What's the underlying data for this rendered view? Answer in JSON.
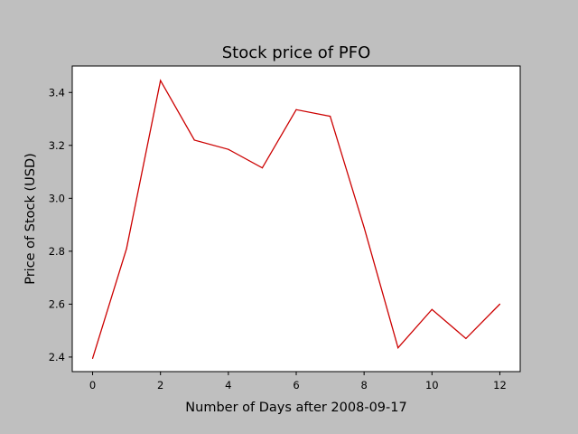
{
  "chart_data": {
    "type": "line",
    "title": "Stock price of PFO",
    "xlabel": "Number of Days after 2008-09-17",
    "ylabel": "Price of Stock (USD)",
    "xlim": [
      -0.6,
      12.6
    ],
    "ylim": [
      2.345,
      3.5
    ],
    "xticks": [
      0,
      2,
      4,
      6,
      8,
      10,
      12
    ],
    "xtick_labels": [
      "0",
      "2",
      "4",
      "6",
      "8",
      "10",
      "12"
    ],
    "yticks": [
      2.4,
      2.6,
      2.8,
      3.0,
      3.2,
      3.4
    ],
    "ytick_labels": [
      "2.4",
      "2.6",
      "2.8",
      "3.0",
      "3.2",
      "3.4"
    ],
    "grid": false,
    "series": [
      {
        "color": "#cc0000",
        "x": [
          0,
          1,
          2,
          3,
          4,
          5,
          6,
          7,
          8,
          9,
          10,
          11,
          12
        ],
        "y": [
          2.395,
          2.81,
          3.445,
          3.22,
          3.185,
          3.115,
          3.335,
          3.31,
          2.89,
          2.435,
          2.58,
          2.47,
          2.6
        ]
      }
    ]
  }
}
